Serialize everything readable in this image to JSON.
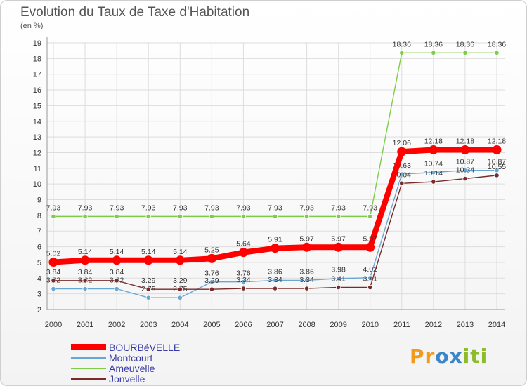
{
  "chart_data": {
    "type": "line",
    "title": "Evolution du Taux de Taxe d'Habitation",
    "subtitle": "(en %)",
    "x": [
      2000,
      2001,
      2002,
      2003,
      2004,
      2005,
      2006,
      2007,
      2008,
      2009,
      2010,
      2011,
      2012,
      2013,
      2014
    ],
    "ylim": [
      2,
      19
    ],
    "yticks": [
      2,
      3,
      4,
      5,
      6,
      7,
      8,
      9,
      10,
      11,
      12,
      13,
      14,
      15,
      16,
      17,
      18,
      19
    ],
    "grid": true,
    "legend_position": "bottom-left",
    "series": [
      {
        "name": "BOURBéVELLE",
        "color": "#ff0000",
        "width": 8,
        "values": [
          5.02,
          5.14,
          5.14,
          5.14,
          5.14,
          5.25,
          5.64,
          5.91,
          5.97,
          5.97,
          5.97,
          12.06,
          12.18,
          12.18,
          12.18
        ],
        "labels": [
          "5.02",
          "5.14",
          "5.14",
          "5.14",
          "5.14",
          "5.25",
          "5.64",
          "5.91",
          "5.97",
          "5.97",
          "5.97",
          "12.06",
          "12.18",
          "12.18",
          "12.18"
        ]
      },
      {
        "name": "Montcourt",
        "color": "#6aa6d4",
        "width": 1.4,
        "values": [
          3.32,
          3.32,
          3.32,
          2.75,
          2.75,
          3.76,
          3.76,
          3.86,
          3.86,
          3.98,
          4.02,
          10.63,
          10.74,
          10.87,
          10.87
        ],
        "labels": [
          "3.32",
          "3.32",
          "3.32",
          "2.75",
          "2.75",
          "3.76",
          "3.76",
          "3.86",
          "3.86",
          "3.98",
          "4.02",
          "10.63",
          "10.74",
          "10.87",
          "10.87"
        ]
      },
      {
        "name": "Ameuvelle",
        "color": "#7fcc4a",
        "width": 1.4,
        "values": [
          7.93,
          7.93,
          7.93,
          7.93,
          7.93,
          7.93,
          7.93,
          7.93,
          7.93,
          7.93,
          7.93,
          18.36,
          18.36,
          18.36,
          18.36
        ],
        "labels": [
          "7.93",
          "7.93",
          "7.93",
          "7.93",
          "7.93",
          "7.93",
          "7.93",
          "7.93",
          "7.93",
          "7.93",
          "7.93",
          "18.36",
          "18.36",
          "18.36",
          "18.36"
        ]
      },
      {
        "name": "Jonvelle",
        "color": "#7a2a2a",
        "width": 1.4,
        "values": [
          3.84,
          3.84,
          3.84,
          3.29,
          3.29,
          3.29,
          3.34,
          3.34,
          3.34,
          3.41,
          3.41,
          10.04,
          10.14,
          10.34,
          10.55
        ],
        "labels": [
          "3.84",
          "3.84",
          "3.84",
          "3.29",
          "3.29",
          "3.29",
          "3.34",
          "3.34",
          "3.34",
          "3.41",
          "3.41",
          "10.04",
          "10.14",
          "10.34",
          "10.55"
        ]
      }
    ]
  },
  "logo": {
    "letters": [
      "P",
      "r",
      "o",
      "x",
      "i",
      "t",
      "i"
    ],
    "colors": [
      "#f29a1c",
      "#f29a1c",
      "#3b86c8",
      "#3b86c8",
      "#8cbc2c",
      "#8cbc2c",
      "#8cbc2c"
    ]
  }
}
